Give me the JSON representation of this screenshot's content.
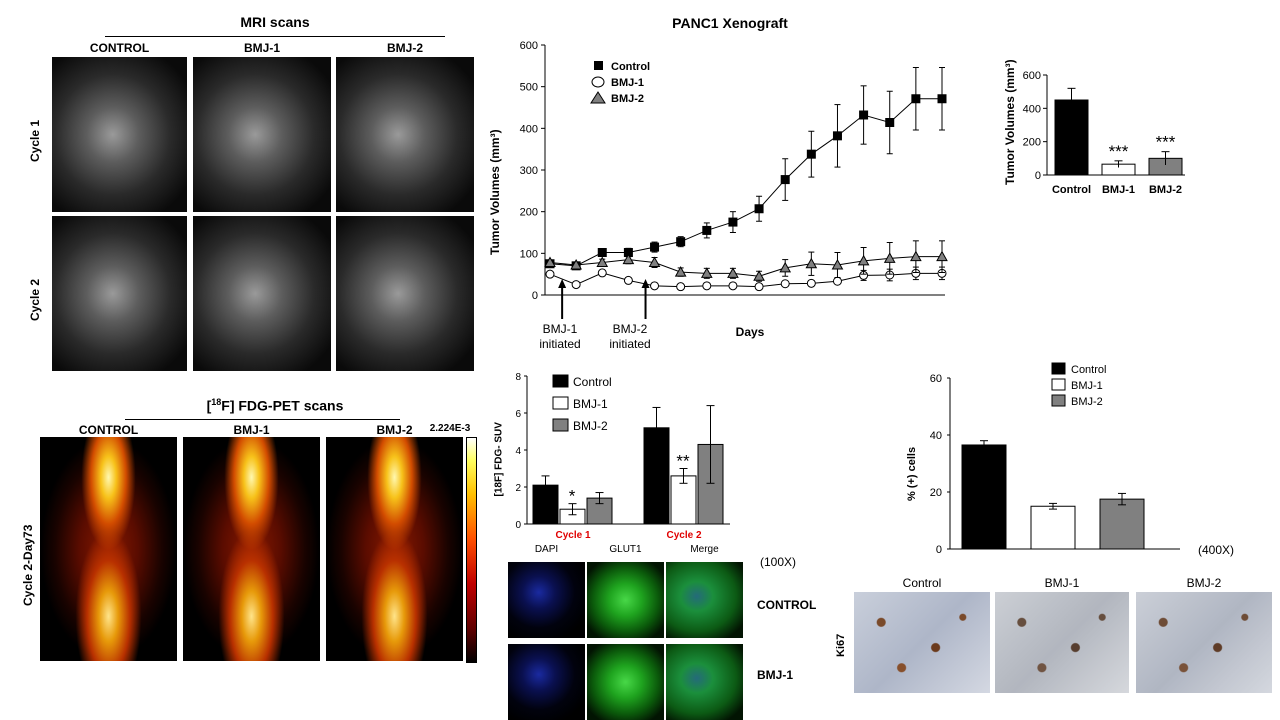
{
  "mri": {
    "title": "MRI scans",
    "cols": [
      "CONTROL",
      "BMJ-1",
      "BMJ-2"
    ],
    "rows": [
      "Cycle 1",
      "Cycle 2"
    ]
  },
  "pet": {
    "title_pre": "[",
    "title_sup": "18",
    "title_post": "F] FDG-PET scans",
    "cols": [
      "CONTROL",
      "BMJ-1",
      "BMJ-2"
    ],
    "row": "Cycle 2-Day73",
    "scale_max": "2.224E-3"
  },
  "xeno": {
    "title": "PANC1 Xenograft",
    "ylabel": "Tumor Volumes (mm³)",
    "xlabel": "Days",
    "arrow1": [
      "BMJ-1",
      "initiated"
    ],
    "arrow2": [
      "BMJ-2",
      "initiated"
    ]
  },
  "small_bar": {
    "ylabel": "Tumor Volumes (mm³)"
  },
  "suv": {
    "ylabel": "[18F] FDG- SUV",
    "cycles": [
      "Cycle 1",
      "Cycle 2"
    ],
    "sig": [
      "*",
      "**"
    ]
  },
  "ki67_chart": {
    "ylabel": "% (+) cells",
    "mag": "(400X)"
  },
  "if_panel": {
    "cols": [
      "DAPI",
      "GLUT1",
      "Merge"
    ],
    "mag": "(100X)",
    "rows": [
      "CONTROL",
      "BMJ-1"
    ]
  },
  "ki67_panel": {
    "cols": [
      "Control",
      "BMJ-1",
      "BMJ-2"
    ],
    "row": "Ki67"
  },
  "colors": {
    "control": "#000000",
    "bmj1": "#ffffff",
    "bmj2": "#808080",
    "cycle_red": "#e00000"
  },
  "chart_data": [
    {
      "type": "line",
      "title": "PANC1 Xenograft",
      "xlabel": "Days",
      "ylabel": "Tumor Volumes (mm³)",
      "ylim": [
        0,
        600
      ],
      "series": [
        {
          "name": "Control",
          "values": [
            75,
            70,
            102,
            102,
            115,
            128,
            155,
            175,
            207,
            277,
            338,
            382,
            432,
            414,
            471,
            471
          ],
          "err": [
            5,
            5,
            8,
            10,
            12,
            12,
            18,
            25,
            30,
            50,
            55,
            75,
            70,
            75,
            75,
            75
          ]
        },
        {
          "name": "BMJ-1",
          "values": [
            50,
            25,
            53,
            35,
            22,
            20,
            22,
            22,
            20,
            27,
            28,
            33,
            47,
            48,
            52,
            52
          ],
          "err": [
            5,
            3,
            5,
            5,
            4,
            4,
            4,
            4,
            4,
            5,
            5,
            6,
            12,
            14,
            15,
            15
          ]
        },
        {
          "name": "BMJ-2",
          "values": [
            78,
            72,
            78,
            85,
            78,
            55,
            52,
            52,
            45,
            65,
            75,
            72,
            82,
            88,
            92,
            92
          ],
          "err": [
            6,
            6,
            8,
            10,
            12,
            10,
            12,
            12,
            12,
            20,
            28,
            30,
            32,
            38,
            38,
            38
          ]
        }
      ]
    },
    {
      "type": "bar",
      "categories": [
        "Control",
        "BMJ-1",
        "BMJ-2"
      ],
      "values": [
        450,
        65,
        100
      ],
      "err": [
        70,
        20,
        40
      ],
      "ylim": [
        0,
        600
      ],
      "ylabel": "Tumor Volumes (mm³)",
      "sig": [
        "",
        "***",
        "***"
      ]
    },
    {
      "type": "bar",
      "ylabel": "[18F] FDG- SUV",
      "ylim": [
        0,
        8
      ],
      "categories": [
        "Cycle 1",
        "Cycle 2"
      ],
      "series": [
        {
          "name": "Control",
          "values": [
            2.1,
            5.2
          ],
          "err": [
            0.5,
            1.1
          ]
        },
        {
          "name": "BMJ-1",
          "values": [
            0.8,
            2.6
          ],
          "err": [
            0.3,
            0.4
          ]
        },
        {
          "name": "BMJ-2",
          "values": [
            1.4,
            4.3
          ],
          "err": [
            0.3,
            2.1
          ]
        }
      ]
    },
    {
      "type": "bar",
      "ylabel": "% (+) cells",
      "ylim": [
        0,
        60
      ],
      "categories": [
        "Control",
        "BMJ-1",
        "BMJ-2"
      ],
      "values": [
        36.5,
        15,
        17.5
      ],
      "err": [
        1.5,
        1,
        2
      ]
    }
  ]
}
